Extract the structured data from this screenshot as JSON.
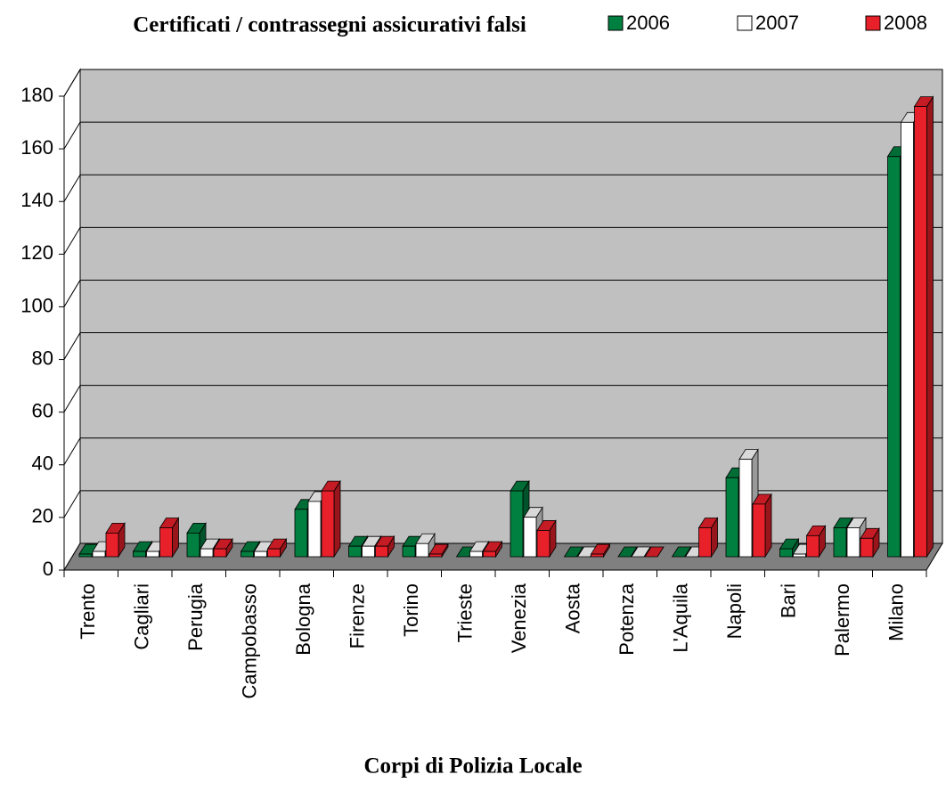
{
  "chart_data": {
    "type": "bar3d",
    "title": "Certificati / contrassegni assicurativi falsi",
    "x_label": "Corpi di Polizia Locale",
    "categories": [
      "Trento",
      "Cagliari",
      "Perugia",
      "Campobasso",
      "Bologna",
      "Firenze",
      "Torino",
      "Trieste",
      "Venezia",
      "Aosta",
      "Potenza",
      "L'Aquila",
      "Napoli",
      "Bari",
      "Palermo",
      "Milano"
    ],
    "series": [
      {
        "name": "2006",
        "color": "#008040",
        "values": [
          1,
          2,
          9,
          2,
          18,
          4,
          4,
          0,
          25,
          0,
          0,
          0,
          30,
          3,
          11,
          152
        ]
      },
      {
        "name": "2007",
        "color": "#ffffff",
        "values": [
          2,
          2,
          3,
          2,
          21,
          4,
          5,
          2,
          15,
          0,
          0,
          0,
          37,
          1,
          11,
          165
        ]
      },
      {
        "name": "2008",
        "color": "#e8202a",
        "values": [
          9,
          11,
          3,
          3,
          25,
          4,
          1,
          2,
          10,
          1,
          0,
          11,
          20,
          8,
          7,
          171
        ]
      }
    ],
    "ylim": [
      0,
      180
    ],
    "yticks": [
      0,
      20,
      40,
      60,
      80,
      100,
      120,
      140,
      160,
      180
    ],
    "grid": true
  }
}
